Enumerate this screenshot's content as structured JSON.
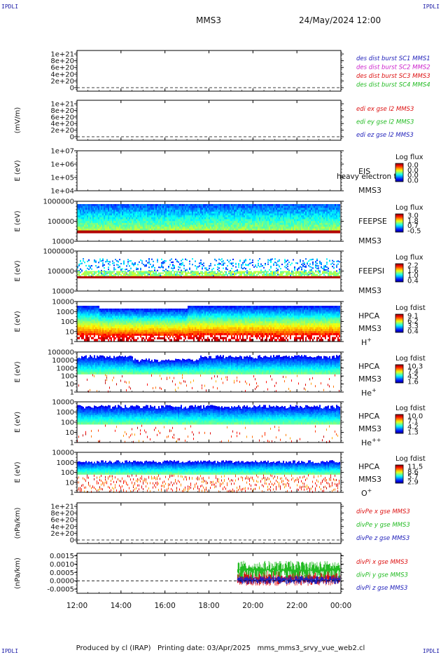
{
  "header": {
    "corner_tl": "IPDLI",
    "corner_tr": "IPDLI",
    "corner_bl": "IPDLI",
    "corner_br": "IPDLI",
    "spacecraft": "MMS3",
    "datetime": "24/May/2024 12:00"
  },
  "footer": {
    "text": "Produced by cl (IRAP)   Printing date: 03/Apr/2025   mms_mms3_srvy_vue_web2.cl"
  },
  "colors": {
    "mms1": "#2222bb",
    "mms2": "#cc22cc",
    "mms3": "#dd1111",
    "mms4": "#22bb22",
    "x": "#dd1111",
    "y": "#22bb22",
    "z": "#2222bb"
  },
  "chart_data": {
    "type": "stacked-timeseries",
    "x_axis": {
      "ticks": [
        "12:00",
        "14:00",
        "16:00",
        "18:00",
        "20:00",
        "22:00",
        "00:00"
      ],
      "range_hours": [
        12,
        24
      ]
    },
    "panels": [
      {
        "id": "des",
        "type": "line",
        "ylabel": "",
        "ticks": [
          "1e+21",
          "8e+20",
          "6e+20",
          "4e+20",
          "2e+20",
          "0"
        ],
        "legend": [
          {
            "text": "des dist burst SC1 MMS1",
            "color": "#2222bb"
          },
          {
            "text": "des dist burst SC2 MMS2",
            "color": "#cc22cc"
          },
          {
            "text": "des dist burst SC3 MMS3",
            "color": "#dd1111"
          },
          {
            "text": "des dist burst SC4 MMS4",
            "color": "#22bb22"
          }
        ],
        "zero_line": true,
        "data": "none"
      },
      {
        "id": "edi",
        "type": "line",
        "ylabel": "(mV/m)",
        "ticks": [
          "1e+21",
          "8e+20",
          "6e+20",
          "4e+20",
          "2e+20",
          "0"
        ],
        "legend": [
          {
            "text": "edi ex gse l2 MMS3",
            "color": "#dd1111"
          },
          {
            "text": "edi ey gse l2 MMS3",
            "color": "#22bb22"
          },
          {
            "text": "edi ez gse l2 MMS3",
            "color": "#2222bb"
          }
        ],
        "zero_line": true,
        "data": "none"
      },
      {
        "id": "eis",
        "type": "spectrogram",
        "ylabel": "E (eV)",
        "ticks": [
          "1e+07",
          "1e+06",
          "1e+05",
          "1e+04"
        ],
        "labels": [
          "EIS",
          "MMS3"
        ],
        "overlay": "heavy electron to",
        "cbar_title": "Log flux",
        "cbar_ticks": [
          "0.0",
          "0.0",
          "0.0",
          "0.0"
        ],
        "data": "none"
      },
      {
        "id": "feepse",
        "type": "spectrogram",
        "ylabel": "E (eV)",
        "ticks": [
          "1000000",
          "100000",
          "10000"
        ],
        "labels": [
          "FEEPSE",
          "MMS3"
        ],
        "cbar_title": "Log flux",
        "cbar_ticks": [
          "3.0",
          "1.8",
          "0.7",
          "-0.5"
        ],
        "style": "feeps_e"
      },
      {
        "id": "feepsi",
        "type": "spectrogram",
        "ylabel": "E (eV)",
        "ticks": [
          "1000000",
          "100000",
          "10000"
        ],
        "labels": [
          "FEEPSI",
          "MMS3"
        ],
        "cbar_title": "Log flux",
        "cbar_ticks": [
          "2.2",
          "1.6",
          "1.0",
          "0.4"
        ],
        "style": "feeps_i"
      },
      {
        "id": "hpca_h",
        "type": "spectrogram",
        "ylabel": "E (eV)",
        "ticks": [
          "10000",
          "1000",
          "100",
          "10",
          "1"
        ],
        "labels": [
          "HPCA",
          "MMS3",
          "H+"
        ],
        "cbar_title": "Log fdist",
        "cbar_ticks": [
          "9.1",
          "6.2",
          "3.3",
          "0.4"
        ],
        "style": "hpca_h"
      },
      {
        "id": "hpca_he",
        "type": "spectrogram",
        "ylabel": "E (eV)",
        "ticks": [
          "100000",
          "10000",
          "1000",
          "100",
          "10",
          "1"
        ],
        "labels": [
          "HPCA",
          "MMS3",
          "He+"
        ],
        "cbar_title": "Log fdist",
        "cbar_ticks": [
          "10.3",
          "7.4",
          "4.5",
          "1.6"
        ],
        "style": "hpca_he"
      },
      {
        "id": "hpca_hepp",
        "type": "spectrogram",
        "ylabel": "E (eV)",
        "ticks": [
          "10000",
          "1000",
          "100",
          "10",
          "1"
        ],
        "labels": [
          "HPCA",
          "MMS3",
          "He++"
        ],
        "cbar_title": "Log fdist",
        "cbar_ticks": [
          "10.0",
          "7.1",
          "4.2",
          "1.3"
        ],
        "style": "hpca_hepp"
      },
      {
        "id": "hpca_o",
        "type": "spectrogram",
        "ylabel": "E (eV)",
        "ticks": [
          "10000",
          "1000",
          "100",
          "10",
          "1"
        ],
        "labels": [
          "HPCA",
          "MMS3",
          "O+"
        ],
        "cbar_title": "Log fdist",
        "cbar_ticks": [
          "11.5",
          "8.6",
          "5.7",
          "2.9"
        ],
        "style": "hpca_o"
      },
      {
        "id": "divpe",
        "type": "line",
        "ylabel": "(nPa/km)",
        "ticks": [
          "1e+21",
          "8e+20",
          "6e+20",
          "4e+20",
          "2e+20",
          "0"
        ],
        "legend": [
          {
            "text": "divPe x gse MMS3",
            "color": "#dd1111"
          },
          {
            "text": "divPe y gse MMS3",
            "color": "#22bb22"
          },
          {
            "text": "divPe z gse MMS3",
            "color": "#2222bb"
          }
        ],
        "zero_line": true,
        "data": "none"
      },
      {
        "id": "divpi",
        "type": "line",
        "ylabel": "(nPa/km)",
        "ticks": [
          "0.0015",
          "0.0010",
          "0.0005",
          "0.0000",
          "-0.0005"
        ],
        "ylim": [
          -0.00075,
          0.00165
        ],
        "legend": [
          {
            "text": "divPi x gse MMS3",
            "color": "#dd1111"
          },
          {
            "text": "divPi y gse MMS3",
            "color": "#22bb22"
          },
          {
            "text": "divPi z gse MMS3",
            "color": "#2222bb"
          }
        ],
        "zero_line": true,
        "data_start_hour": 19.3,
        "series_ranges": [
          {
            "name": "x",
            "range": [
              -0.0003,
              0.0006
            ]
          },
          {
            "name": "y",
            "range": [
              0.0001,
              0.0012
            ]
          },
          {
            "name": "z",
            "range": [
              -0.0002,
              0.0003
            ]
          }
        ]
      }
    ]
  }
}
